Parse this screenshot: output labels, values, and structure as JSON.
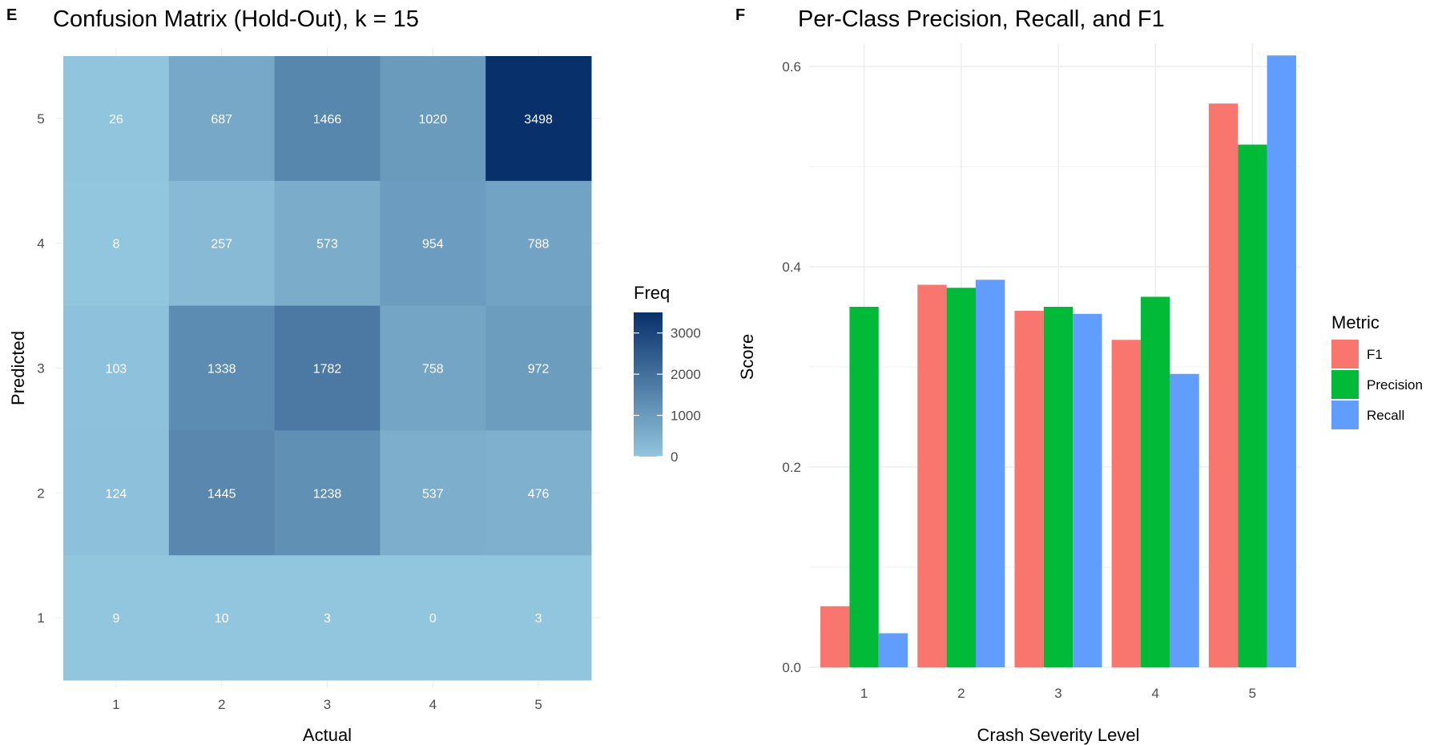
{
  "panels": {
    "left": {
      "tag": "E",
      "title": "Confusion Matrix (Hold-Out), k = 15"
    },
    "right": {
      "tag": "F",
      "title": "Per-Class Precision, Recall, and F1"
    }
  },
  "chart_data": [
    {
      "type": "heatmap",
      "title": "Confusion Matrix (Hold-Out), k = 15",
      "xlabel": "Actual",
      "ylabel": "Predicted",
      "x_categories": [
        "1",
        "2",
        "3",
        "4",
        "5"
      ],
      "y_categories": [
        "1",
        "2",
        "3",
        "4",
        "5"
      ],
      "cells": [
        {
          "actual": "1",
          "predicted": "5",
          "value": 26
        },
        {
          "actual": "2",
          "predicted": "5",
          "value": 687
        },
        {
          "actual": "3",
          "predicted": "5",
          "value": 1466
        },
        {
          "actual": "4",
          "predicted": "5",
          "value": 1020
        },
        {
          "actual": "5",
          "predicted": "5",
          "value": 3498
        },
        {
          "actual": "1",
          "predicted": "4",
          "value": 8
        },
        {
          "actual": "2",
          "predicted": "4",
          "value": 257
        },
        {
          "actual": "3",
          "predicted": "4",
          "value": 573
        },
        {
          "actual": "4",
          "predicted": "4",
          "value": 954
        },
        {
          "actual": "5",
          "predicted": "4",
          "value": 788
        },
        {
          "actual": "1",
          "predicted": "3",
          "value": 103
        },
        {
          "actual": "2",
          "predicted": "3",
          "value": 1338
        },
        {
          "actual": "3",
          "predicted": "3",
          "value": 1782
        },
        {
          "actual": "4",
          "predicted": "3",
          "value": 758
        },
        {
          "actual": "5",
          "predicted": "3",
          "value": 972
        },
        {
          "actual": "1",
          "predicted": "2",
          "value": 124
        },
        {
          "actual": "2",
          "predicted": "2",
          "value": 1445
        },
        {
          "actual": "3",
          "predicted": "2",
          "value": 1238
        },
        {
          "actual": "4",
          "predicted": "2",
          "value": 537
        },
        {
          "actual": "5",
          "predicted": "2",
          "value": 476
        },
        {
          "actual": "1",
          "predicted": "1",
          "value": 9
        },
        {
          "actual": "2",
          "predicted": "1",
          "value": 10
        },
        {
          "actual": "3",
          "predicted": "1",
          "value": 3
        },
        {
          "actual": "4",
          "predicted": "1",
          "value": 0
        },
        {
          "actual": "5",
          "predicted": "1",
          "value": 3
        }
      ],
      "legend": {
        "title": "Freq",
        "position": "right",
        "ticks": [
          0,
          1000,
          2000,
          3000
        ],
        "range": [
          0,
          3498
        ],
        "color_low": "#92c5de",
        "color_high": "#08306b"
      },
      "cell_label_color": "#ffffff",
      "grid": true
    },
    {
      "type": "bar",
      "title": "Per-Class Precision, Recall, and F1",
      "xlabel": "Crash Severity Level",
      "ylabel": "Score",
      "categories": [
        "1",
        "2",
        "3",
        "4",
        "5"
      ],
      "ylim": [
        0,
        0.62
      ],
      "yticks": [
        0.0,
        0.2,
        0.4,
        0.6
      ],
      "ytick_labels": [
        "0.0",
        "0.2",
        "0.4",
        "0.6"
      ],
      "series": [
        {
          "name": "F1",
          "color": "#f8766d",
          "values": [
            0.061,
            0.382,
            0.356,
            0.327,
            0.563
          ]
        },
        {
          "name": "Precision",
          "color": "#00ba38",
          "values": [
            0.36,
            0.379,
            0.36,
            0.37,
            0.522
          ]
        },
        {
          "name": "Recall",
          "color": "#619cff",
          "values": [
            0.034,
            0.387,
            0.353,
            0.293,
            0.611
          ]
        }
      ],
      "legend": {
        "title": "Metric",
        "position": "right"
      },
      "grid": true
    }
  ]
}
